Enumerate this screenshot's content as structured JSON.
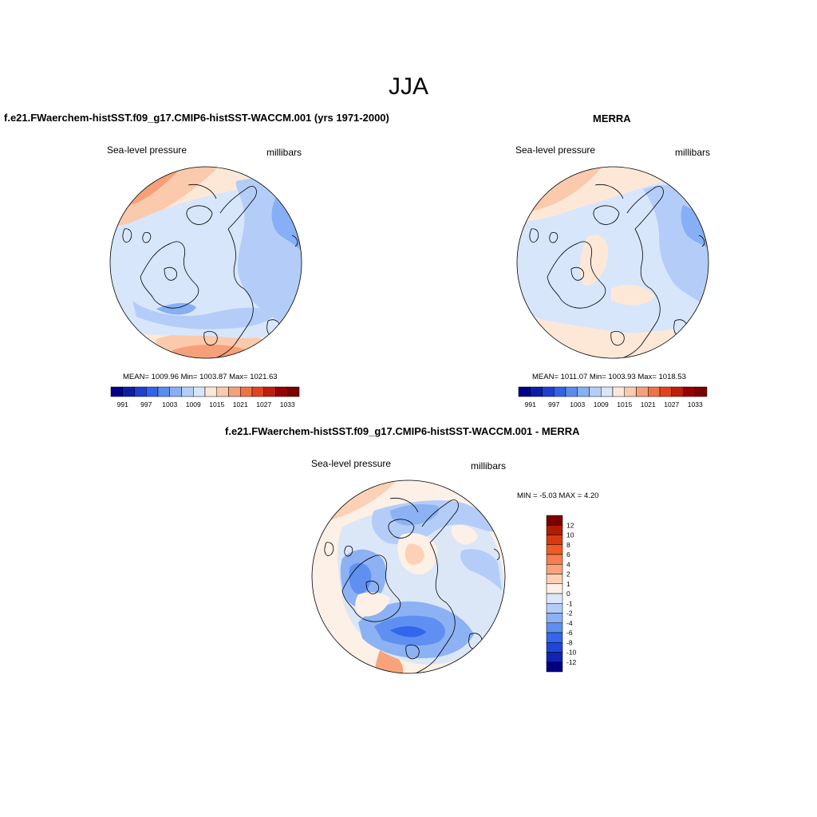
{
  "figure": {
    "title": "JJA"
  },
  "panels": [
    {
      "title": "f.e21.FWaerchem-histSST.f09_g17.CMIP6-histSST-WACCM.001 (yrs 1971-2000)",
      "left_label": "Sea-level pressure",
      "right_label": "millibars",
      "stats": "MEAN= 1009.96  Min= 1003.87  Max= 1021.63",
      "colorbar": {
        "tick_labels": [
          "991",
          "997",
          "1003",
          "1009",
          "1015",
          "1021",
          "1027",
          "1033"
        ],
        "colors": [
          "#00008c",
          "#0a1fa8",
          "#1e3fd2",
          "#3264eb",
          "#5a8cf0",
          "#87aff5",
          "#b4cdf8",
          "#d7e6fb",
          "#fde8d8",
          "#fbc9ab",
          "#f6a07a",
          "#f07346",
          "#e4421e",
          "#c01e0a",
          "#960000",
          "#7a0000"
        ]
      }
    },
    {
      "title": "MERRA",
      "left_label": "Sea-level pressure",
      "right_label": "millibars",
      "stats": "MEAN= 1011.07  Min= 1003.93  Max= 1018.53",
      "colorbar": {
        "tick_labels": [
          "991",
          "997",
          "1003",
          "1009",
          "1015",
          "1021",
          "1027",
          "1033"
        ],
        "colors": [
          "#00008c",
          "#0a1fa8",
          "#1e3fd2",
          "#3264eb",
          "#5a8cf0",
          "#87aff5",
          "#b4cdf8",
          "#d7e6fb",
          "#fde8d8",
          "#fbc9ab",
          "#f6a07a",
          "#f07346",
          "#e4421e",
          "#c01e0a",
          "#960000",
          "#7a0000"
        ]
      }
    },
    {
      "title": "f.e21.FWaerchem-histSST.f09_g17.CMIP6-histSST-WACCM.001 - MERRA",
      "left_label": "Sea-level pressure",
      "right_label": "millibars",
      "stats": "MIN =  -5.03 MAX =   4.20",
      "colorbar": {
        "tick_labels": [
          "12",
          "10",
          "8",
          "6",
          "4",
          "2",
          "1",
          "0",
          "-1",
          "-2",
          "-4",
          "-6",
          "-8",
          "-10",
          "-12"
        ],
        "colors": [
          "#7a0000",
          "#b01c00",
          "#d83a10",
          "#f05a24",
          "#f67d4f",
          "#f9a37a",
          "#fcd1b6",
          "#fdf0e6",
          "#dbe7f7",
          "#b4cdf8",
          "#8cb2f4",
          "#5f8ff0",
          "#3366ec",
          "#1e46d8",
          "#0f24b4",
          "#000080"
        ]
      }
    }
  ],
  "colors": {
    "ocean_light_blue": "#d7e6fb",
    "mid_blue": "#b4cdf8",
    "deeper_blue": "#87aff5",
    "light_peach": "#fde8d8",
    "peach": "#fbc9ab",
    "salmon": "#f6a07a",
    "orange_red": "#f07346",
    "coastline": "#000000"
  }
}
